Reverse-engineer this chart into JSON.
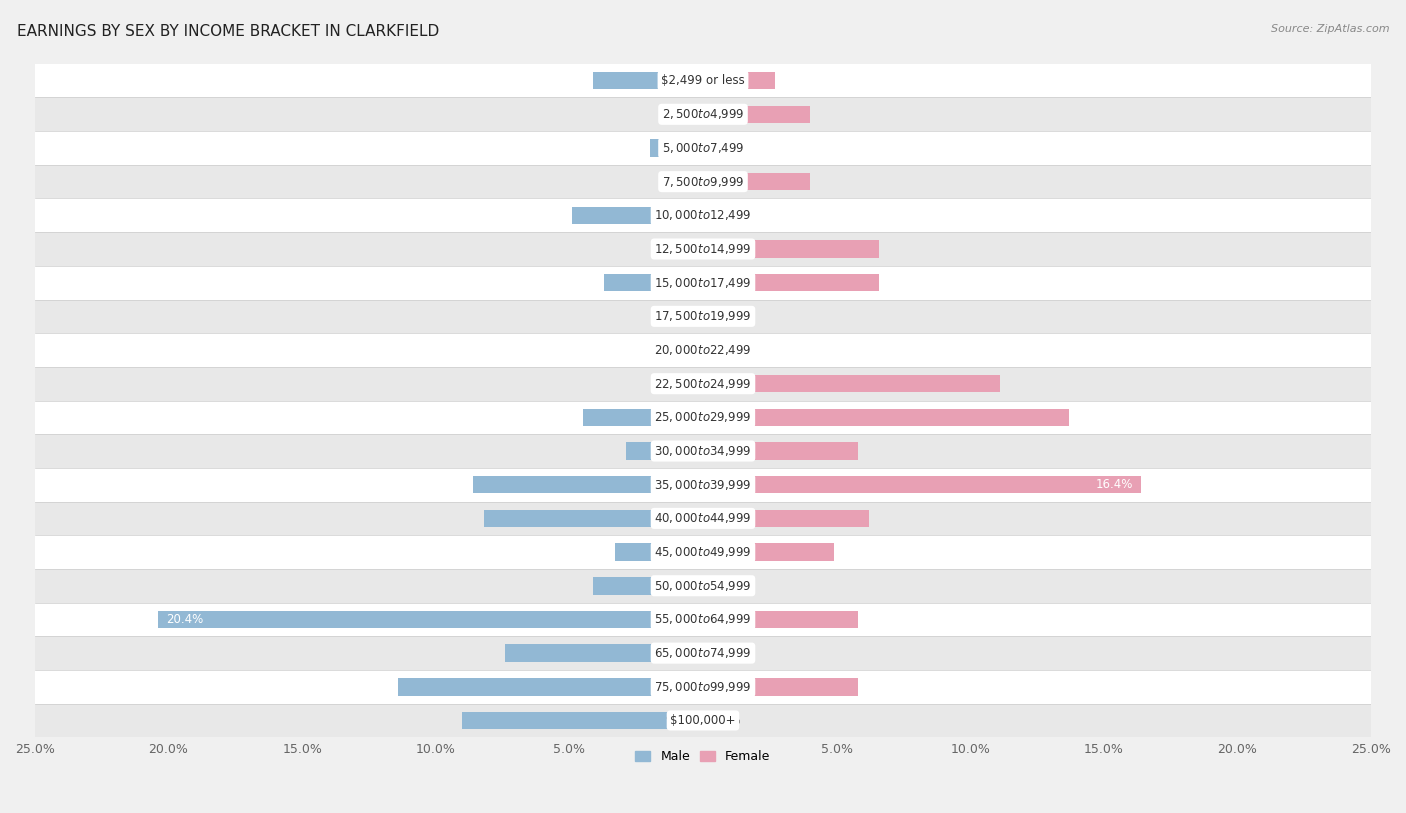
{
  "title": "EARNINGS BY SEX BY INCOME BRACKET IN CLARKFIELD",
  "source": "Source: ZipAtlas.com",
  "categories": [
    "$2,499 or less",
    "$2,500 to $4,999",
    "$5,000 to $7,499",
    "$7,500 to $9,999",
    "$10,000 to $12,499",
    "$12,500 to $14,999",
    "$15,000 to $17,499",
    "$17,500 to $19,999",
    "$20,000 to $22,499",
    "$22,500 to $24,999",
    "$25,000 to $29,999",
    "$30,000 to $34,999",
    "$35,000 to $39,999",
    "$40,000 to $44,999",
    "$45,000 to $49,999",
    "$50,000 to $54,999",
    "$55,000 to $64,999",
    "$65,000 to $74,999",
    "$75,000 to $99,999",
    "$100,000+"
  ],
  "male": [
    4.1,
    1.6,
    2.0,
    1.2,
    4.9,
    1.6,
    3.7,
    0.0,
    1.2,
    0.0,
    4.5,
    2.9,
    8.6,
    8.2,
    3.3,
    4.1,
    20.4,
    7.4,
    11.4,
    9.0
  ],
  "female": [
    2.7,
    4.0,
    1.3,
    4.0,
    0.88,
    6.6,
    6.6,
    0.0,
    1.3,
    11.1,
    13.7,
    5.8,
    16.4,
    6.2,
    4.9,
    1.8,
    5.8,
    1.3,
    5.8,
    0.0
  ],
  "male_color": "#92b8d4",
  "female_color": "#e8a0b4",
  "label_color": "#555555",
  "male_highlight_rows": [
    16
  ],
  "female_highlight_rows": [
    12
  ],
  "highlight_text_color": "#ffffff",
  "bar_height": 0.52,
  "xlim": 25.0,
  "bg_color": "#f0f0f0",
  "row_bg_even": "#ffffff",
  "row_bg_odd": "#e8e8e8",
  "title_fontsize": 11,
  "label_fontsize": 8.5,
  "tick_fontsize": 9,
  "category_fontsize": 8.5,
  "tick_positions": [
    -25,
    -20,
    -15,
    -10,
    -5,
    0,
    5,
    10,
    15,
    20,
    25
  ],
  "tick_labels": [
    "25.0%",
    "20.0%",
    "15.0%",
    "10.0%",
    "5.0%",
    "",
    "5.0%",
    "10.0%",
    "15.0%",
    "20.0%",
    "25.0%"
  ]
}
